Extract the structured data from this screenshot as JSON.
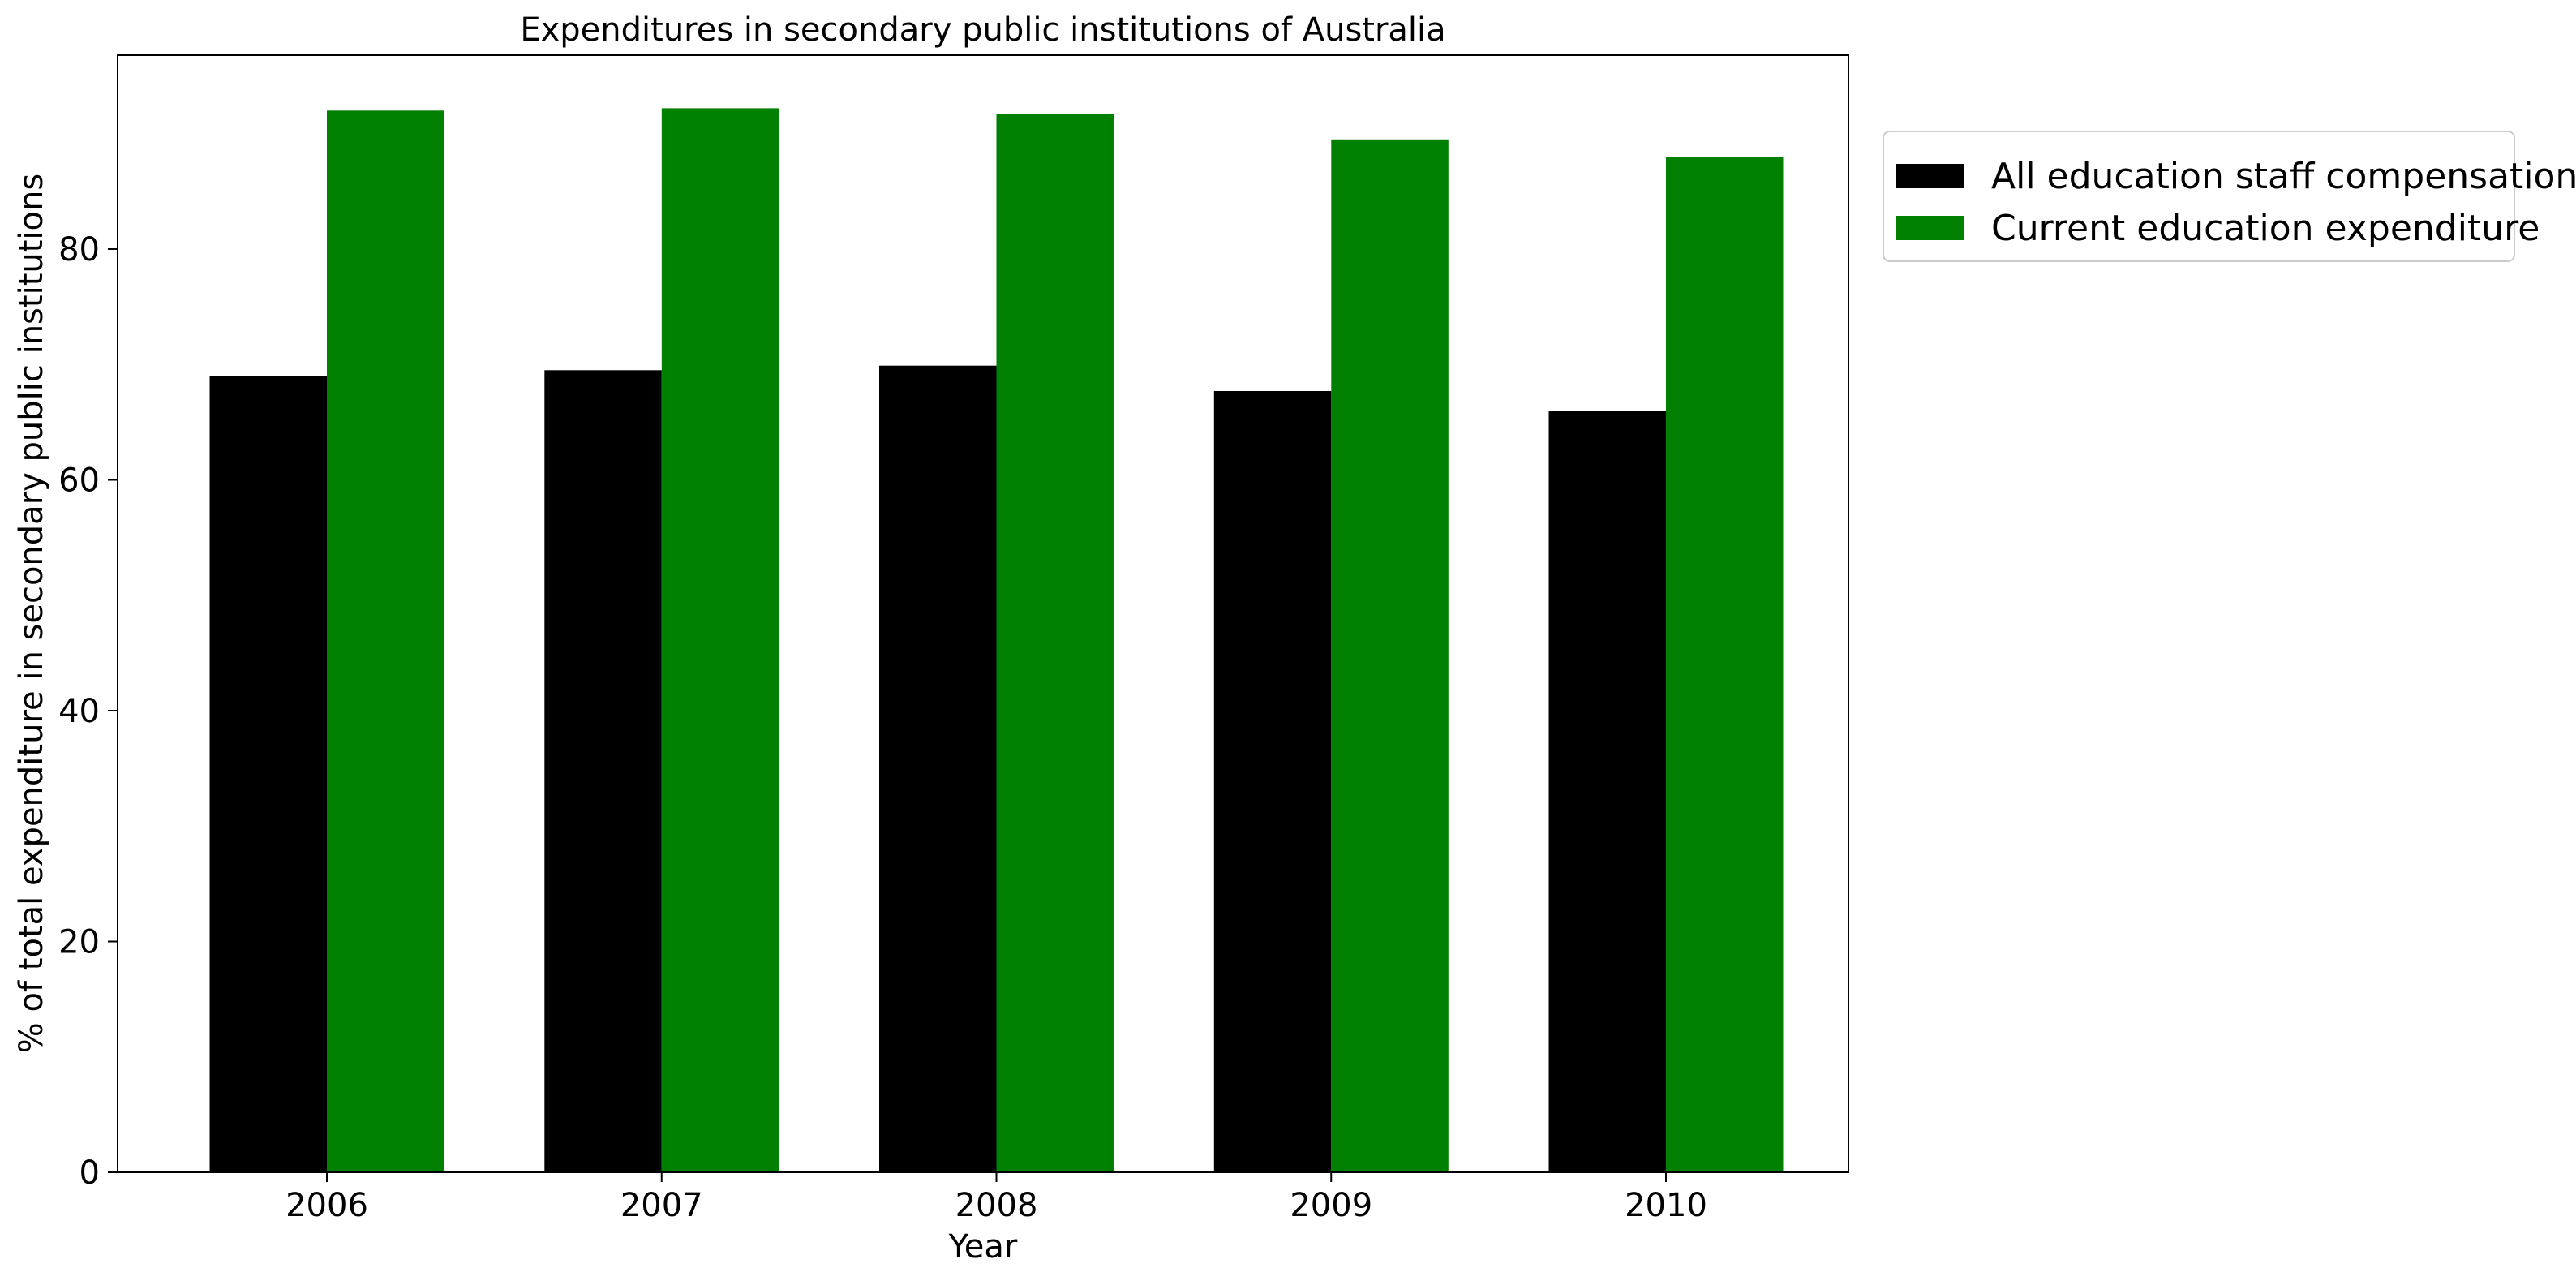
{
  "chart_data": {
    "type": "bar",
    "title": "Expenditures in secondary public institutions of Australia",
    "xlabel": "Year",
    "ylabel": "% of total expenditure in secondary public institutions",
    "categories": [
      "2006",
      "2007",
      "2008",
      "2009",
      "2010"
    ],
    "series": [
      {
        "name": "All education staff compensation",
        "color": "#000000",
        "values": [
          69.0,
          69.5,
          69.9,
          67.7,
          66.0
        ]
      },
      {
        "name": "Current education expenditure",
        "color": "#008000",
        "values": [
          92.0,
          92.2,
          91.7,
          89.5,
          88.0
        ]
      }
    ],
    "ylim": [
      0,
      96.8
    ],
    "yticks": [
      0,
      20,
      40,
      60,
      80
    ],
    "grid": false,
    "legend": "outside-top-right"
  }
}
